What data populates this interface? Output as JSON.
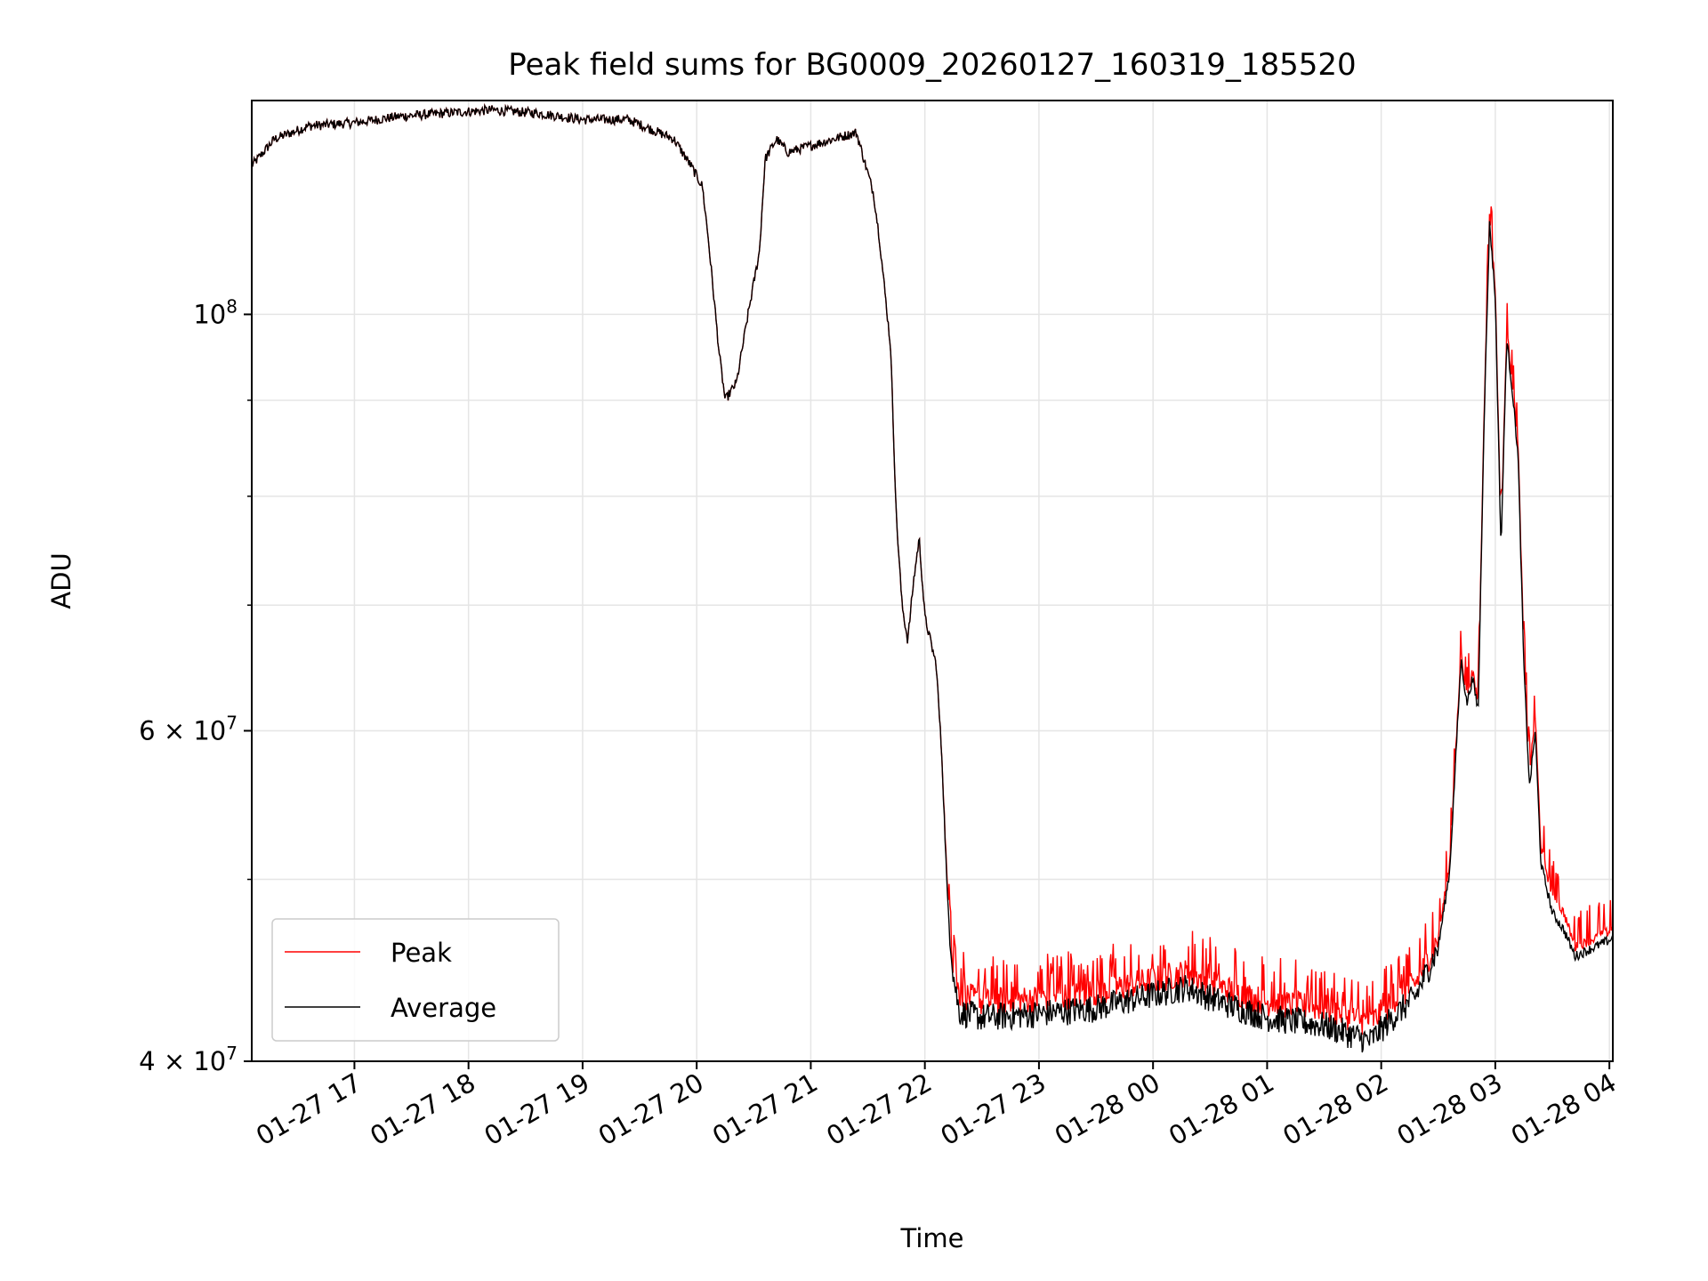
{
  "chart_data": {
    "type": "line",
    "title": "Peak field sums for BG0009_20260127_160319_185520",
    "xlabel": "Time",
    "ylabel": "ADU",
    "yscale": "log",
    "ylim": [
      40000000,
      130000000
    ],
    "xlim_hours": [
      16.1,
      28.03
    ],
    "grid": true,
    "legend_position": "lower-left",
    "x_ticks": [
      {
        "label": "01-27 17",
        "hour": 17
      },
      {
        "label": "01-27 18",
        "hour": 18
      },
      {
        "label": "01-27 19",
        "hour": 19
      },
      {
        "label": "01-27 20",
        "hour": 20
      },
      {
        "label": "01-27 21",
        "hour": 21
      },
      {
        "label": "01-27 22",
        "hour": 22
      },
      {
        "label": "01-27 23",
        "hour": 23
      },
      {
        "label": "01-28 00",
        "hour": 24
      },
      {
        "label": "01-28 01",
        "hour": 25
      },
      {
        "label": "01-28 02",
        "hour": 26
      },
      {
        "label": "01-28 03",
        "hour": 27
      },
      {
        "label": "01-28 04",
        "hour": 28
      }
    ],
    "y_ticks": [
      {
        "label": "4 × 10^7",
        "mant": "4",
        "exp": "7",
        "value": 40000000
      },
      {
        "label": "6 × 10^7",
        "mant": "6",
        "exp": "7",
        "value": 60000000
      },
      {
        "label": "10^8",
        "mant": "",
        "exp": "8",
        "value": 100000000
      }
    ],
    "y_minor_ticks": [
      50000000,
      70000000,
      80000000,
      90000000
    ],
    "series": [
      {
        "name": "Peak",
        "color": "#ff0000",
        "noise_spikes": 1.04,
        "hours": [
          16.1,
          16.3,
          16.6,
          17.0,
          17.4,
          17.8,
          18.2,
          18.6,
          19.0,
          19.4,
          19.8,
          19.95,
          20.05,
          20.1,
          20.2,
          20.25,
          20.35,
          20.45,
          20.55,
          20.6,
          20.7,
          20.8,
          21.0,
          21.2,
          21.4,
          21.55,
          21.6,
          21.7,
          21.75,
          21.8,
          21.85,
          21.9,
          21.95,
          22.0,
          22.1,
          22.15,
          22.2,
          22.25,
          22.3,
          22.5,
          23.0,
          23.5,
          24.0,
          24.3,
          24.6,
          25.0,
          25.5,
          25.9,
          26.1,
          26.3,
          26.5,
          26.6,
          26.65,
          26.7,
          26.75,
          26.8,
          26.85,
          26.9,
          26.95,
          27.0,
          27.05,
          27.1,
          27.15,
          27.2,
          27.25,
          27.3,
          27.35,
          27.4,
          27.5,
          27.6,
          27.7,
          28.03
        ],
        "values": [
          120000000,
          124000000,
          126000000,
          126500000,
          127500000,
          128000000,
          128500000,
          128000000,
          127000000,
          127000000,
          124000000,
          120000000,
          117000000,
          110000000,
          95000000,
          90000000,
          92000000,
          100000000,
          108000000,
          121000000,
          124000000,
          122000000,
          123000000,
          124000000,
          125000000,
          116000000,
          110000000,
          96000000,
          78000000,
          70000000,
          67000000,
          72000000,
          76000000,
          69000000,
          65000000,
          58000000,
          49000000,
          45000000,
          43500000,
          43000000,
          43200000,
          43500000,
          44200000,
          44600000,
          43800000,
          43000000,
          42700000,
          41900000,
          43000000,
          44000000,
          46500000,
          51000000,
          58000000,
          66000000,
          62500000,
          64500000,
          62000000,
          88000000,
          113000000,
          103000000,
          76000000,
          98000000,
          92000000,
          85000000,
          66000000,
          57000000,
          61000000,
          52000000,
          49000000,
          48000000,
          46000000,
          47000000
        ]
      },
      {
        "name": "Average",
        "color": "#000000",
        "noise_spikes": 1.0,
        "hours": [
          16.1,
          16.3,
          16.6,
          17.0,
          17.4,
          17.8,
          18.2,
          18.6,
          19.0,
          19.4,
          19.8,
          19.95,
          20.05,
          20.1,
          20.2,
          20.25,
          20.35,
          20.45,
          20.55,
          20.6,
          20.7,
          20.8,
          21.0,
          21.2,
          21.4,
          21.55,
          21.6,
          21.7,
          21.75,
          21.8,
          21.85,
          21.9,
          21.95,
          22.0,
          22.1,
          22.15,
          22.2,
          22.25,
          22.3,
          22.5,
          23.0,
          23.5,
          24.0,
          24.3,
          24.6,
          25.0,
          25.5,
          25.9,
          26.1,
          26.3,
          26.5,
          26.6,
          26.65,
          26.7,
          26.75,
          26.8,
          26.85,
          26.9,
          26.95,
          27.0,
          27.05,
          27.1,
          27.15,
          27.2,
          27.25,
          27.3,
          27.35,
          27.4,
          27.5,
          27.6,
          27.7,
          28.03
        ],
        "values": [
          120000000,
          124000000,
          126000000,
          126500000,
          127500000,
          128000000,
          128500000,
          128000000,
          127000000,
          127000000,
          124000000,
          120000000,
          117000000,
          110000000,
          95000000,
          90000000,
          92000000,
          100000000,
          108000000,
          121000000,
          124000000,
          122000000,
          123000000,
          124000000,
          125000000,
          116000000,
          110000000,
          96000000,
          78000000,
          70000000,
          67000000,
          72000000,
          76000000,
          69000000,
          65000000,
          58000000,
          48500000,
          44500000,
          42500000,
          42200000,
          42400000,
          42700000,
          43400000,
          43800000,
          43000000,
          42200000,
          41800000,
          41000000,
          42200000,
          43300000,
          46000000,
          50500000,
          57500000,
          65500000,
          62000000,
          64000000,
          61500000,
          87000000,
          112000000,
          102000000,
          75000000,
          97000000,
          91000000,
          84000000,
          65000000,
          56000000,
          60000000,
          51000000,
          48000000,
          47000000,
          45500000,
          46500000
        ]
      }
    ]
  }
}
